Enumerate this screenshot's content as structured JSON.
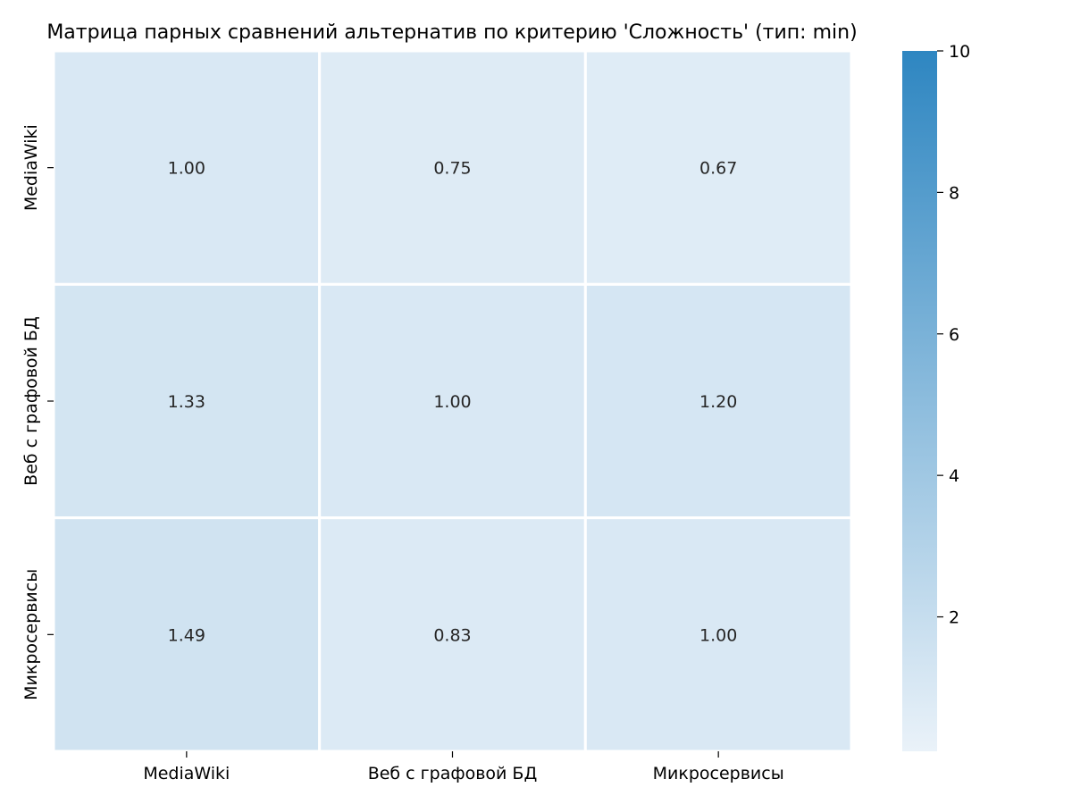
{
  "chart_data": {
    "type": "heatmap",
    "title": "Матрица парных сравнений альтернатив по критерию 'Сложность' (тип: min)",
    "rows": [
      "MediaWiki",
      "Веб с графовой БД",
      "Микросервисы"
    ],
    "columns": [
      "MediaWiki",
      "Веб с графовой БД",
      "Микросервисы"
    ],
    "values": [
      [
        1.0,
        0.75,
        0.67
      ],
      [
        1.33,
        1.0,
        1.2
      ],
      [
        1.49,
        0.83,
        1.0
      ]
    ],
    "value_labels": [
      [
        "1.00",
        "0.75",
        "0.67"
      ],
      [
        "1.33",
        "1.00",
        "1.20"
      ],
      [
        "1.49",
        "0.83",
        "1.00"
      ]
    ],
    "colorbar": {
      "range": [
        0.1,
        10
      ],
      "ticks": [
        2,
        4,
        6,
        8,
        10
      ],
      "tick_labels": [
        "2",
        "4",
        "6",
        "8",
        "10"
      ],
      "color_low": "#eaf2f9",
      "color_high": "#2e86c1"
    },
    "cell_border_color": "#ffffff",
    "xlabel": "",
    "ylabel": ""
  }
}
